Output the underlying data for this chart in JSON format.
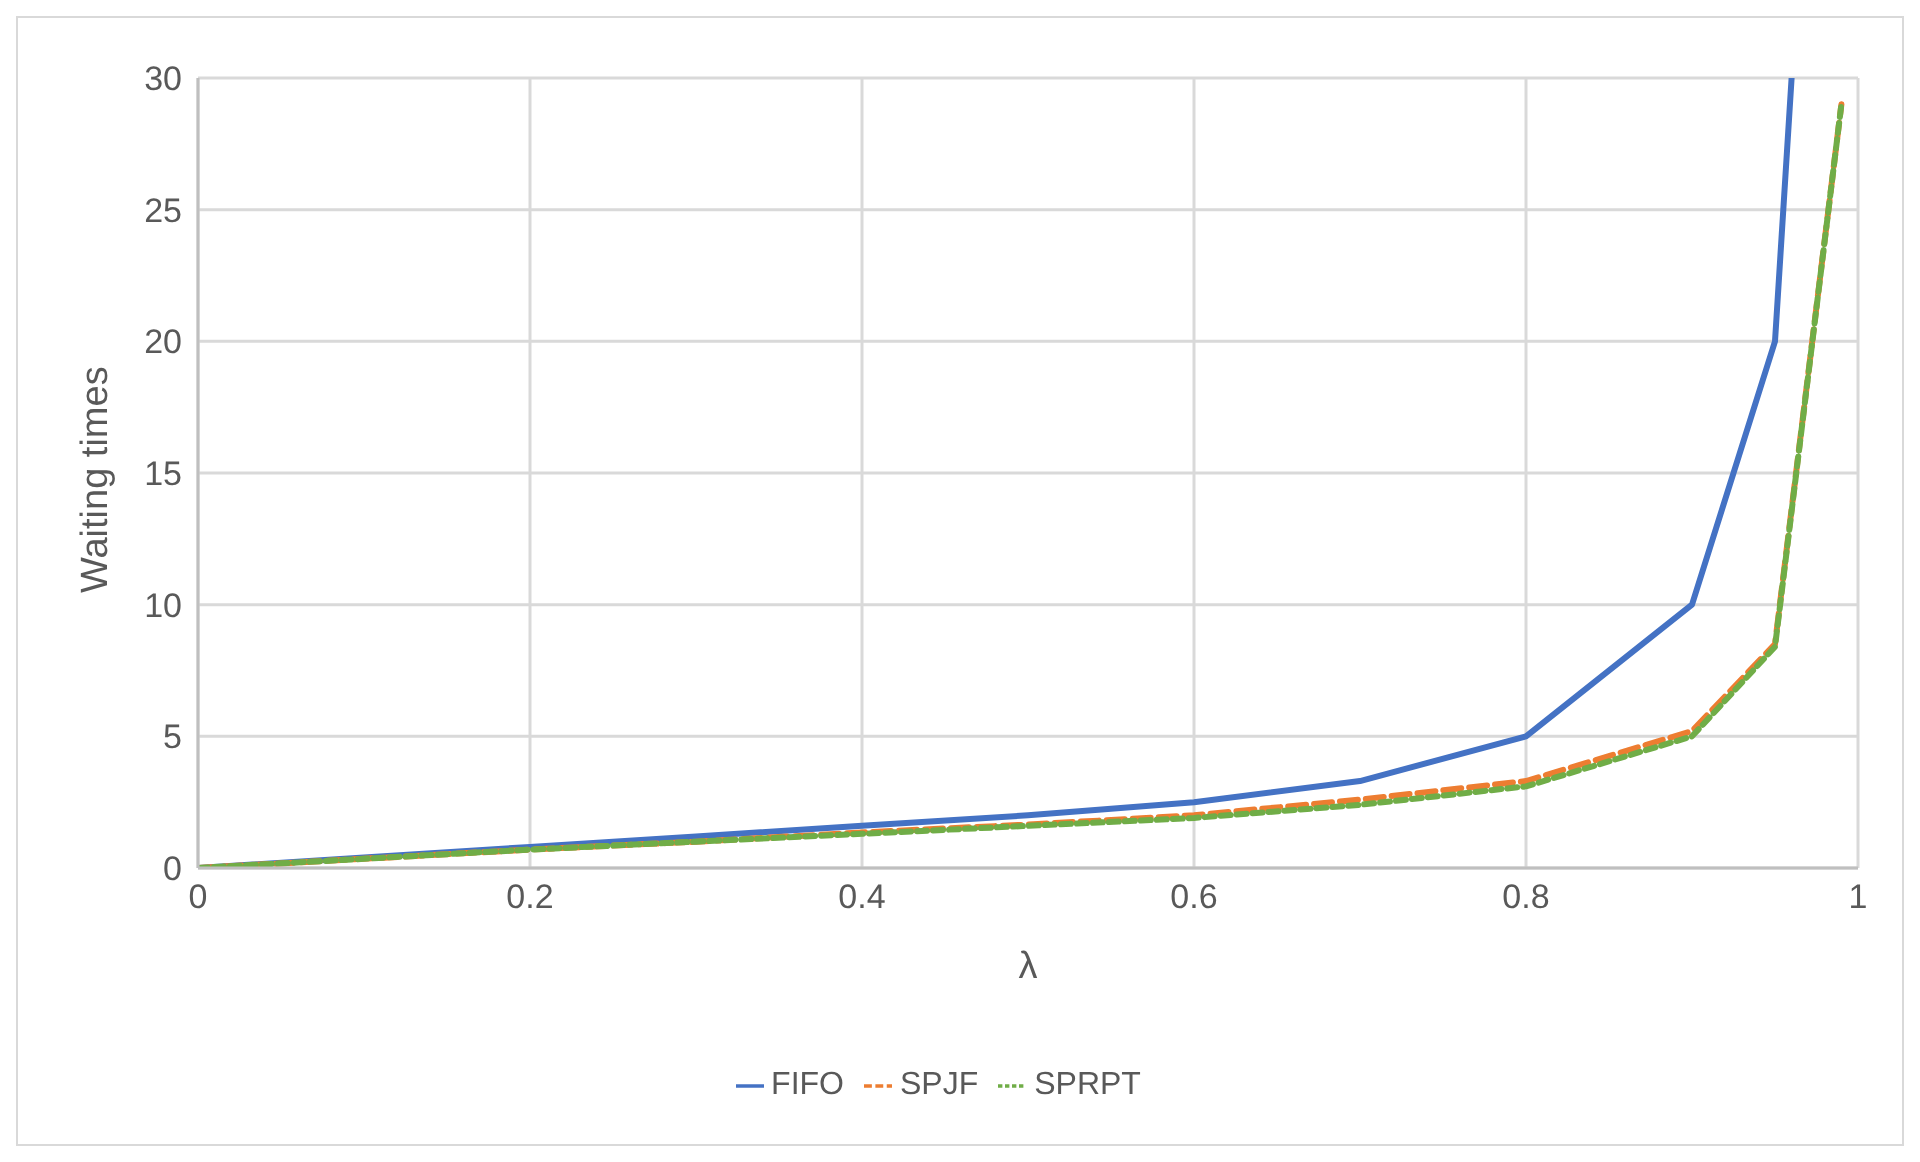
{
  "chart_data": {
    "type": "line",
    "xlabel": "λ",
    "ylabel": "Waiting times",
    "x": [
      0,
      0.1,
      0.2,
      0.3,
      0.4,
      0.5,
      0.6,
      0.7,
      0.8,
      0.9,
      0.95,
      0.99
    ],
    "series": [
      {
        "name": "FIFO",
        "color": "#4472c4",
        "line_style": "solid",
        "x": [
          0,
          0.1,
          0.2,
          0.3,
          0.4,
          0.5,
          0.6,
          0.7,
          0.8,
          0.9,
          0.95,
          0.96
        ],
        "values": [
          0,
          0.4,
          0.8,
          1.2,
          1.6,
          2.0,
          2.5,
          3.3,
          5,
          10,
          20,
          30
        ]
      },
      {
        "name": "SPJF",
        "color": "#ed7d31",
        "line_style": "dashed",
        "values": [
          0,
          0.35,
          0.7,
          1.0,
          1.35,
          1.65,
          2.0,
          2.6,
          3.3,
          5.2,
          8.5,
          29
        ]
      },
      {
        "name": "SPRPT",
        "color": "#70ad47",
        "line_style": "dotted",
        "values": [
          0,
          0.35,
          0.7,
          1.0,
          1.3,
          1.6,
          1.9,
          2.4,
          3.1,
          5.0,
          8.4,
          29
        ]
      }
    ],
    "xlim": [
      0,
      1
    ],
    "xticks": [
      0,
      0.2,
      0.4,
      0.6,
      0.8,
      1
    ],
    "ylim": [
      0,
      30
    ],
    "yticks": [
      0,
      5,
      10,
      15,
      20,
      25,
      30
    ],
    "grid": true,
    "legend": "bottom",
    "marker": "none"
  }
}
